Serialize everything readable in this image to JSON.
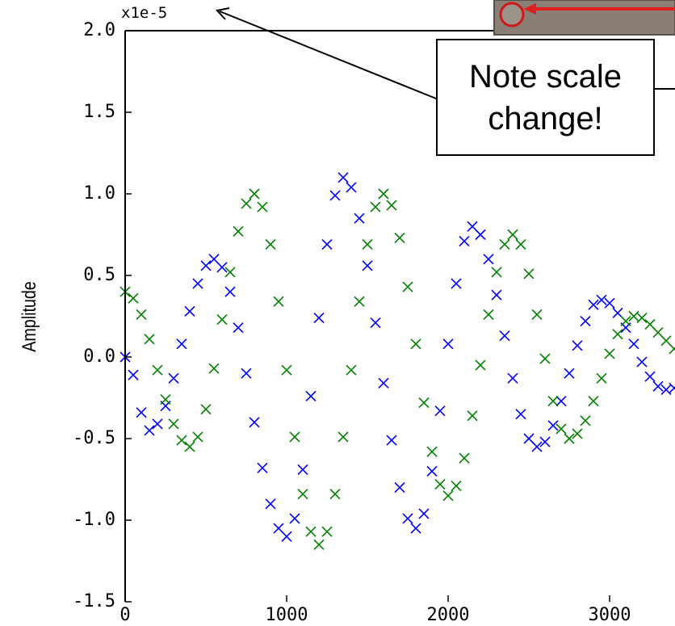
{
  "chart_data": {
    "type": "scatter",
    "offset_text": "x1e-5",
    "y_label": "Amplitude",
    "annotation": "Note scale change!",
    "marker": "x",
    "x": [
      0,
      50,
      100,
      150,
      200,
      250,
      300,
      350,
      400,
      450,
      500,
      550,
      600,
      650,
      700,
      750,
      800,
      850,
      900,
      950,
      1000,
      1050,
      1100,
      1150,
      1200,
      1250,
      1300,
      1350,
      1400,
      1450,
      1500,
      1550,
      1600,
      1650,
      1700,
      1750,
      1800,
      1850,
      1900,
      1950,
      2000,
      2050,
      2100,
      2150,
      2200,
      2250,
      2300,
      2350,
      2400,
      2450,
      2500,
      2550,
      2600,
      2650,
      2700,
      2750,
      2800,
      2850,
      2900,
      2950,
      3000,
      3050,
      3100,
      3150,
      3200,
      3250,
      3300,
      3350,
      3400
    ],
    "series": [
      {
        "color": "#0000ff",
        "values": [
          0.0,
          -0.11,
          -0.34,
          -0.45,
          -0.41,
          -0.3,
          -0.13,
          0.08,
          0.28,
          0.45,
          0.56,
          0.6,
          0.55,
          0.4,
          0.18,
          -0.1,
          -0.4,
          -0.68,
          -0.9,
          -1.05,
          -1.1,
          -0.99,
          -0.69,
          -0.24,
          0.24,
          0.69,
          0.99,
          1.1,
          1.04,
          0.85,
          0.56,
          0.21,
          -0.16,
          -0.51,
          -0.8,
          -0.99,
          -1.05,
          -0.96,
          -0.7,
          -0.33,
          0.08,
          0.45,
          0.71,
          0.8,
          0.75,
          0.6,
          0.38,
          0.13,
          -0.13,
          -0.35,
          -0.5,
          -0.55,
          -0.52,
          -0.42,
          -0.27,
          -0.1,
          0.07,
          0.22,
          0.32,
          0.35,
          0.33,
          0.27,
          0.18,
          0.08,
          -0.03,
          -0.12,
          -0.18,
          -0.2,
          -0.19
        ]
      },
      {
        "color": "#008000",
        "values": [
          0.4,
          0.36,
          0.26,
          0.11,
          -0.08,
          -0.26,
          -0.41,
          -0.51,
          -0.55,
          -0.49,
          -0.32,
          -0.07,
          0.23,
          0.52,
          0.77,
          0.94,
          1.0,
          0.92,
          0.69,
          0.34,
          -0.08,
          -0.49,
          -0.84,
          -1.07,
          -1.15,
          -1.07,
          -0.84,
          -0.49,
          -0.08,
          0.34,
          0.69,
          0.92,
          1.0,
          0.93,
          0.73,
          0.43,
          0.08,
          -0.28,
          -0.58,
          -0.78,
          -0.85,
          -0.79,
          -0.62,
          -0.36,
          -0.05,
          0.26,
          0.52,
          0.69,
          0.75,
          0.69,
          0.51,
          0.26,
          -0.01,
          -0.27,
          -0.44,
          -0.5,
          -0.47,
          -0.39,
          -0.27,
          -0.13,
          0.02,
          0.14,
          0.22,
          0.25,
          0.24,
          0.2,
          0.15,
          0.1,
          0.05
        ]
      }
    ],
    "xlim": [
      0,
      3400
    ],
    "ylim": [
      -1.5,
      2.0
    ],
    "xticks": [
      0,
      1000,
      2000,
      3000
    ],
    "yticks": [
      -1.5,
      {
        "value": -1.0,
        "label": "-1.0"
      },
      -0.5,
      {
        "value": 0,
        "label": "0.0"
      },
      0.5,
      {
        "value": 1.0,
        "label": "1.0"
      },
      1.5,
      {
        "value": 2.0,
        "label": "2.0"
      }
    ],
    "grid": false
  }
}
